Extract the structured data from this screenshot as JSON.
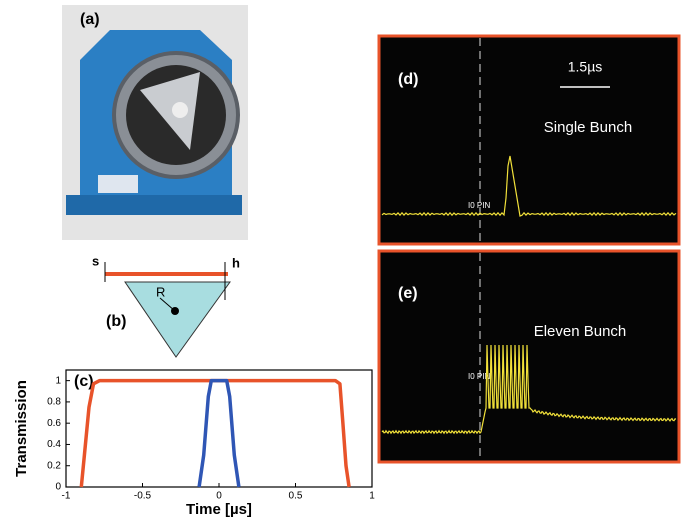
{
  "panels": {
    "a": {
      "label": "(a)"
    },
    "b": {
      "label": "(b)",
      "s": "s",
      "h": "h",
      "r": "R"
    },
    "d": {
      "label": "(d)",
      "scale": "1.5µs",
      "title": "Single Bunch",
      "marker": "I0 PIN"
    },
    "e": {
      "label": "(e)",
      "title": "Eleven Bunch",
      "marker": "I0 PIN"
    }
  },
  "chart_data": {
    "type": "line",
    "label": "(c)",
    "x_label": "Time [µs]",
    "y_label": "Transmission",
    "xlim": [
      -1,
      1
    ],
    "ylim": [
      0,
      1.1
    ],
    "xticks": [
      -1,
      -0.5,
      0,
      0.5,
      1
    ],
    "yticks": [
      0,
      0.2,
      0.4,
      0.6,
      0.8,
      1
    ],
    "series": [
      {
        "color": "#e8532a",
        "x": [
          -0.9,
          -0.88,
          -0.85,
          -0.82,
          -0.78,
          0.76,
          0.79,
          0.81,
          0.83,
          0.85
        ],
        "values": [
          0,
          0.3,
          0.75,
          0.97,
          1,
          1,
          0.97,
          0.6,
          0.2,
          0
        ]
      },
      {
        "color": "#2f56b5",
        "x": [
          -0.13,
          -0.1,
          -0.07,
          -0.05,
          0.05,
          0.07,
          0.1,
          0.13
        ],
        "values": [
          0,
          0.3,
          0.85,
          1,
          1,
          0.85,
          0.3,
          0
        ]
      }
    ]
  }
}
